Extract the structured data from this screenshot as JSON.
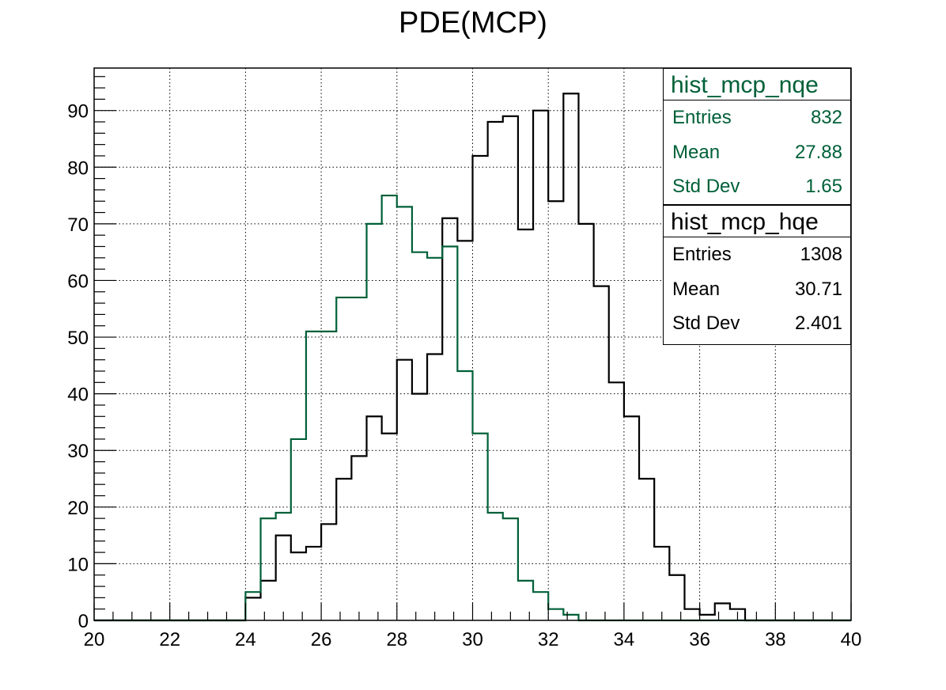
{
  "colors": {
    "hqe": "#000000",
    "nqe": "#006038",
    "grid": "#000000"
  },
  "chart_data": {
    "type": "bar",
    "title": "PDE(MCP)",
    "xlabel": "",
    "ylabel": "",
    "xlim": [
      20,
      40
    ],
    "ylim": [
      0,
      97.5
    ],
    "grid": true,
    "x_ticks": [
      20,
      22,
      24,
      26,
      28,
      30,
      32,
      34,
      36,
      38,
      40
    ],
    "y_ticks": [
      0,
      10,
      20,
      30,
      40,
      50,
      60,
      70,
      80,
      90
    ],
    "bin_width": 0.4,
    "bin_edges_start": 24.0,
    "series": [
      {
        "name": "hist_mcp_hqe",
        "color": "#000000",
        "bin_starts": [
          24.0,
          24.4,
          24.8,
          25.2,
          25.6,
          26.0,
          26.4,
          26.8,
          27.2,
          27.6,
          28.0,
          28.4,
          28.8,
          29.2,
          29.6,
          30.0,
          30.4,
          30.8,
          31.2,
          31.6,
          32.0,
          32.4,
          32.8,
          33.2,
          33.6,
          34.0,
          34.4,
          34.8,
          35.2,
          35.6,
          36.0,
          36.4,
          36.8
        ],
        "values": [
          4,
          7,
          15,
          12,
          13,
          17,
          25,
          29,
          36,
          33,
          46,
          40,
          47,
          71,
          67,
          82,
          88,
          89,
          69,
          90,
          74,
          93,
          70,
          59,
          42,
          36,
          25,
          13,
          8,
          2,
          1,
          3,
          2
        ]
      },
      {
        "name": "hist_mcp_nqe",
        "color": "#006038",
        "bin_starts": [
          24.0,
          24.4,
          24.8,
          25.2,
          25.6,
          26.0,
          26.4,
          26.8,
          27.2,
          27.6,
          28.0,
          28.4,
          28.8,
          29.2,
          29.6,
          30.0,
          30.4,
          30.8,
          31.2,
          31.6,
          32.0,
          32.4
        ],
        "values": [
          5,
          18,
          19,
          32,
          51,
          51,
          57,
          57,
          70,
          75,
          73,
          65,
          64,
          66,
          44,
          33,
          19,
          18,
          7,
          5,
          2,
          1
        ]
      }
    ],
    "stats_boxes": [
      {
        "name": "hist_mcp_nqe",
        "entries_label": "Entries",
        "entries": "832",
        "mean_label": "Mean",
        "mean": "27.88",
        "std_label": "Std Dev",
        "std": "1.65"
      },
      {
        "name": "hist_mcp_hqe",
        "entries_label": "Entries",
        "entries": "1308",
        "mean_label": "Mean",
        "mean": "30.71",
        "std_label": "Std Dev",
        "std": "2.401"
      }
    ]
  }
}
